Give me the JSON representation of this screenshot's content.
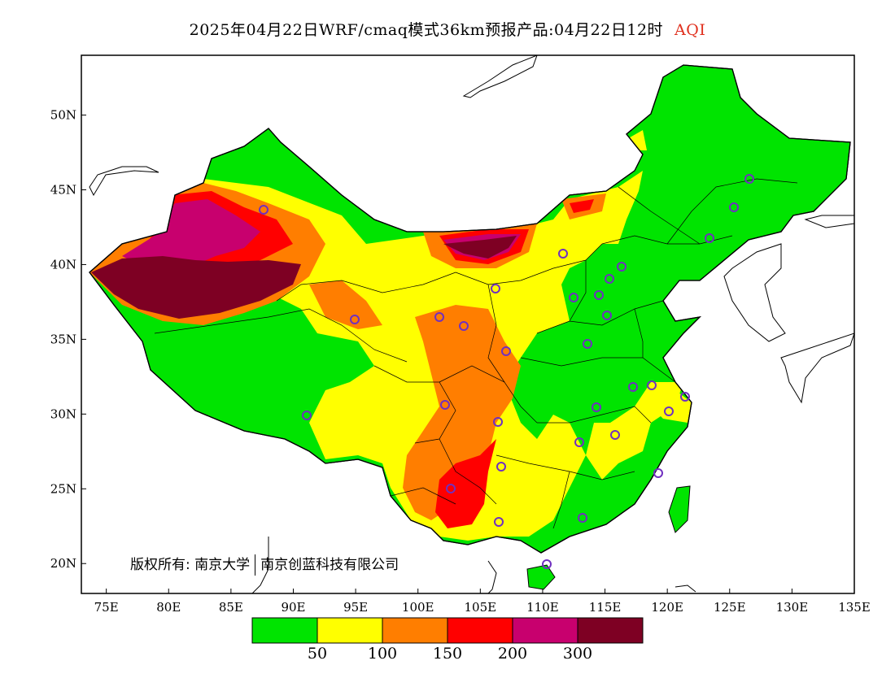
{
  "title": {
    "main": "2025年04月22日WRF/cmaq模式36km预报产品:04月22日12时",
    "variable": "AQI"
  },
  "copyright": {
    "owner_label": "版权所有:",
    "org1": "南京大学",
    "org2": "南京创蓝科技有限公司"
  },
  "axes": {
    "lon_labels": [
      "75E",
      "80E",
      "85E",
      "90E",
      "95E",
      "100E",
      "105E",
      "110E",
      "115E",
      "120E",
      "125E",
      "130E",
      "135E"
    ],
    "lat_labels": [
      "50N",
      "45N",
      "40N",
      "35N",
      "30N",
      "25N",
      "20N"
    ],
    "lon_range": [
      73,
      135
    ],
    "lat_range": [
      18,
      54
    ]
  },
  "legend": {
    "thresholds": [
      "50",
      "100",
      "150",
      "200",
      "300"
    ],
    "colors": [
      "#00e400",
      "#ffff00",
      "#ff7e00",
      "#ff0000",
      "#c8006e",
      "#7e0023"
    ],
    "categories": [
      "0-50",
      "50-100",
      "100-150",
      "150-200",
      "200-300",
      ">300"
    ]
  },
  "colors": {
    "site_marker": "#7030c0",
    "boundary": "#000000"
  }
}
